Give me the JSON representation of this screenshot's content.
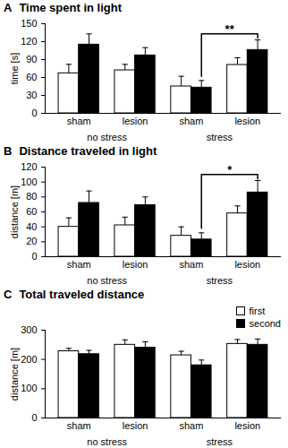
{
  "chart_data": [
    {
      "type": "bar",
      "panel": "A",
      "title": "Time spent in light",
      "ylabel": "time [s]",
      "categories": [
        "sham",
        "lesion",
        "sham",
        "lesion"
      ],
      "groups": [
        {
          "label": "no stress",
          "categories": [
            0,
            1
          ]
        },
        {
          "label": "stress",
          "categories": [
            2,
            3
          ]
        }
      ],
      "series": [
        {
          "name": "first",
          "color": "#ffffff",
          "values": [
            67,
            72,
            45,
            81
          ],
          "errors": [
            15,
            10,
            17,
            12
          ]
        },
        {
          "name": "second",
          "color": "#000000",
          "values": [
            115,
            97,
            43,
            106
          ],
          "errors": [
            18,
            13,
            12,
            17
          ]
        }
      ],
      "ylim": [
        0,
        150
      ],
      "yticks": [
        0,
        30,
        60,
        90,
        120,
        150
      ],
      "significance": [
        {
          "label": "**",
          "series": "second",
          "from": 2,
          "to": 3,
          "y": 133,
          "from_y": 62,
          "to_y": 126
        }
      ]
    },
    {
      "type": "bar",
      "panel": "B",
      "title": "Distance traveled in light",
      "ylabel": "distance [m]",
      "categories": [
        "sham",
        "lesion",
        "sham",
        "lesion"
      ],
      "groups": [
        {
          "label": "no stress",
          "categories": [
            0,
            1
          ]
        },
        {
          "label": "stress",
          "categories": [
            2,
            3
          ]
        }
      ],
      "series": [
        {
          "name": "first",
          "color": "#ffffff",
          "values": [
            40,
            42,
            28,
            58
          ],
          "errors": [
            12,
            11,
            12,
            10
          ]
        },
        {
          "name": "second",
          "color": "#000000",
          "values": [
            72,
            69,
            23,
            86
          ],
          "errors": [
            16,
            11,
            9,
            16
          ]
        }
      ],
      "ylim": [
        0,
        120
      ],
      "yticks": [
        0,
        20,
        40,
        60,
        80,
        100,
        120
      ],
      "significance": [
        {
          "label": "*",
          "series": "second",
          "from": 2,
          "to": 3,
          "y": 110,
          "from_y": 38,
          "to_y": 104
        }
      ]
    },
    {
      "type": "bar",
      "panel": "C",
      "title": "Total traveled distance",
      "ylabel": "distance [m]",
      "categories": [
        "sham",
        "lesion",
        "sham",
        "lesion"
      ],
      "groups": [
        {
          "label": "no stress",
          "categories": [
            0,
            1
          ]
        },
        {
          "label": "stress",
          "categories": [
            2,
            3
          ]
        }
      ],
      "series": [
        {
          "name": "first",
          "color": "#ffffff",
          "values": [
            228,
            250,
            214,
            253
          ],
          "errors": [
            10,
            17,
            14,
            15
          ]
        },
        {
          "name": "second",
          "color": "#000000",
          "values": [
            218,
            240,
            180,
            250
          ],
          "errors": [
            13,
            20,
            18,
            20
          ]
        }
      ],
      "ylim": [
        0,
        300
      ],
      "yticks": [
        0,
        100,
        200,
        300
      ],
      "legend": "top-right"
    }
  ]
}
